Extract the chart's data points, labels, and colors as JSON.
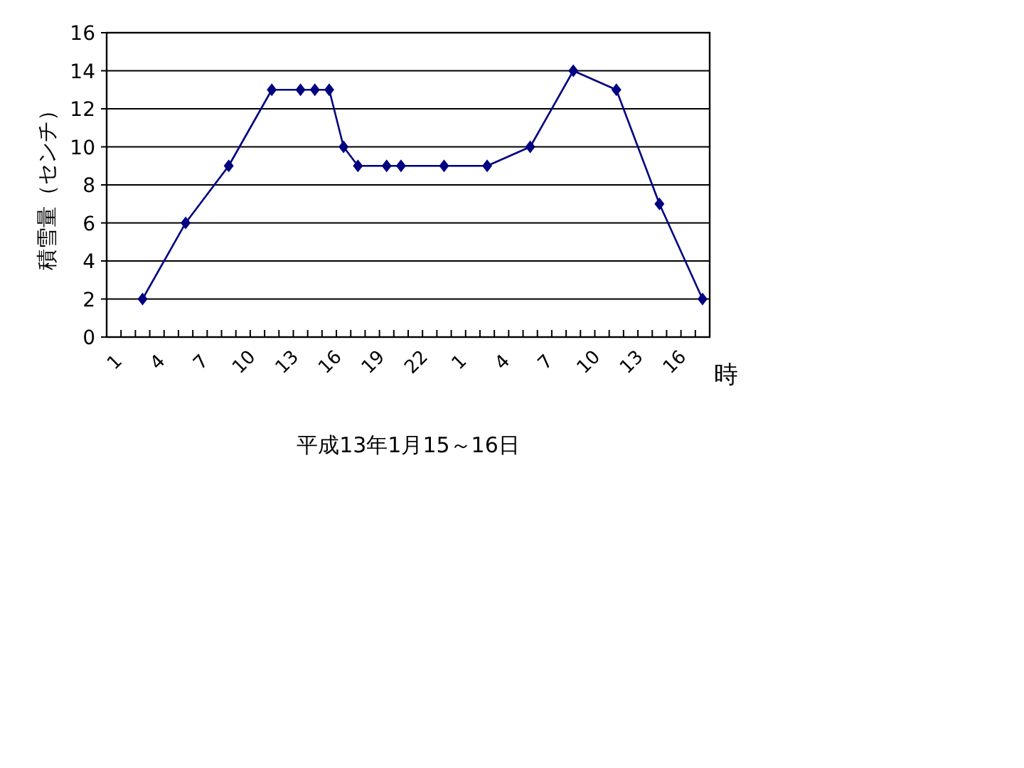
{
  "chart_data": {
    "type": "line",
    "ylabel": "積雪量（センチ）",
    "xlabel": "平成13年1月15～16日",
    "annotations": [
      "時"
    ],
    "categories": [
      "1",
      null,
      null,
      "4",
      null,
      null,
      "7",
      null,
      null,
      "10",
      null,
      null,
      "13",
      null,
      null,
      "16",
      null,
      null,
      "19",
      null,
      null,
      "22",
      null,
      null,
      "1",
      null,
      null,
      "4",
      null,
      null,
      "7",
      null,
      null,
      "10",
      null,
      null,
      "13",
      null,
      null,
      "16",
      null,
      null
    ],
    "series": [
      {
        "color": "#000080",
        "values": [
          null,
          null,
          2,
          null,
          null,
          6,
          null,
          null,
          9,
          null,
          null,
          13,
          null,
          13,
          13,
          13,
          10,
          9,
          null,
          9,
          9,
          null,
          null,
          9,
          null,
          null,
          9,
          null,
          null,
          10,
          null,
          null,
          14,
          null,
          null,
          13,
          null,
          null,
          7,
          null,
          null,
          2
        ]
      }
    ],
    "ylim": [
      0,
      16
    ],
    "yticks": [
      0,
      2,
      4,
      6,
      8,
      10,
      12,
      14,
      16
    ],
    "grid": "y",
    "marker": "diamond",
    "line_style": "solid"
  }
}
